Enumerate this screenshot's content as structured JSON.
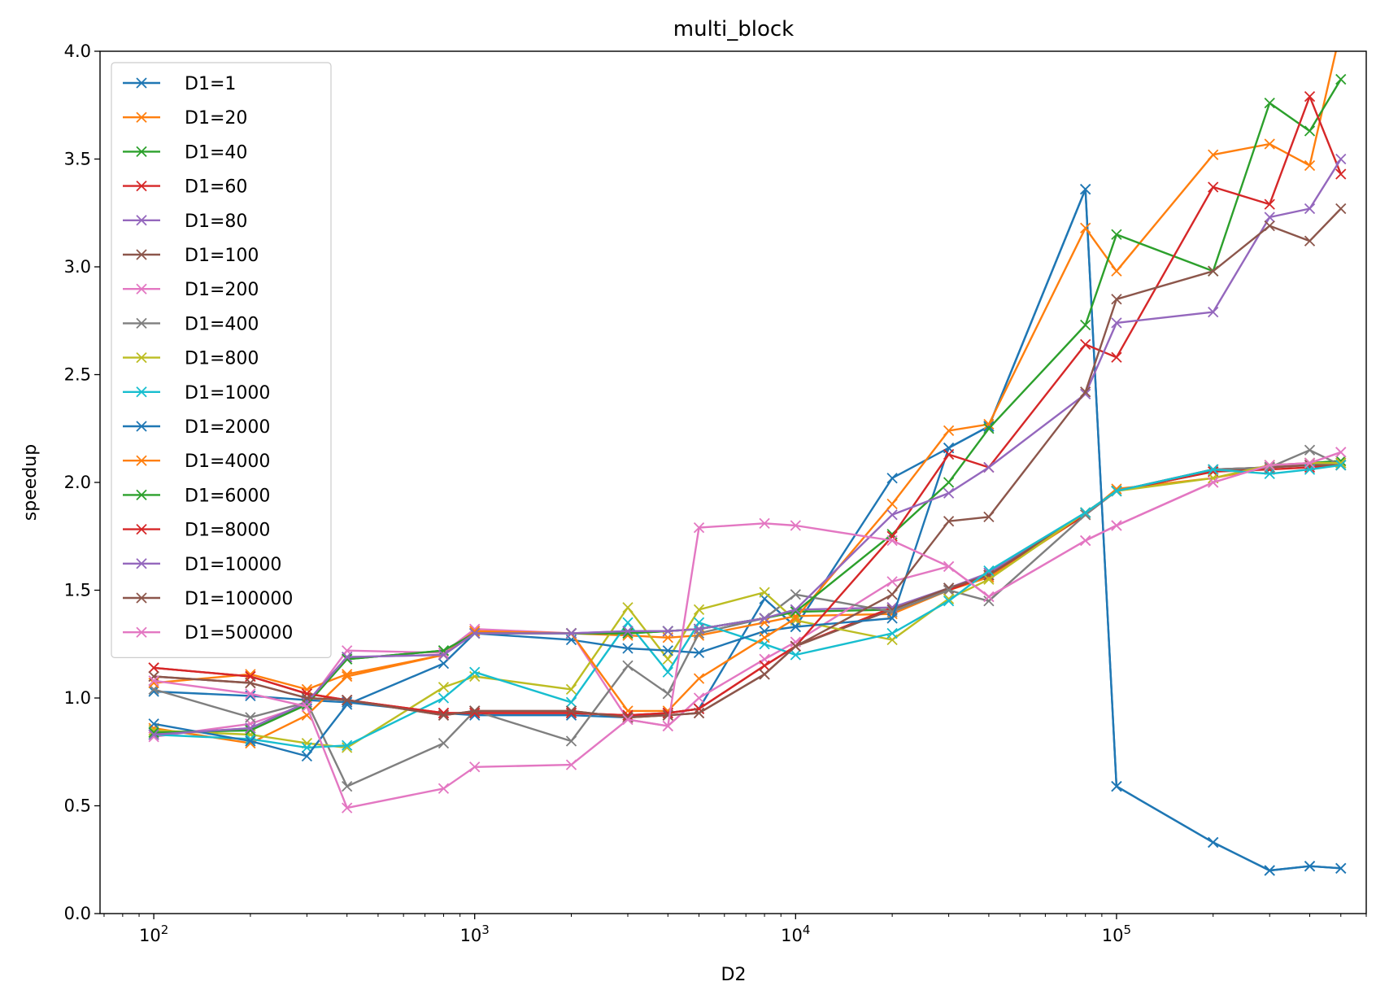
{
  "chart_data": {
    "type": "line",
    "title": "multi_block",
    "xlabel": "D2",
    "ylabel": "speedup",
    "xscale": "log",
    "xlim": [
      68,
      600000
    ],
    "ylim": [
      0,
      4.0
    ],
    "x_ticks": [
      {
        "value": 100,
        "base": "10",
        "exp": "2"
      },
      {
        "value": 1000,
        "base": "10",
        "exp": "3"
      },
      {
        "value": 10000,
        "base": "10",
        "exp": "4"
      },
      {
        "value": 100000,
        "base": "10",
        "exp": "5"
      }
    ],
    "y_ticks": [
      "0.0",
      "0.5",
      "1.0",
      "1.5",
      "2.0",
      "2.5",
      "3.0",
      "3.5",
      "4.0"
    ],
    "legend_position": "upper-left",
    "marker": "x",
    "grid": false,
    "x": [
      100,
      200,
      300,
      400,
      800,
      1000,
      2000,
      3000,
      4000,
      5000,
      8000,
      10000,
      20000,
      30000,
      40000,
      80000,
      100000,
      200000,
      300000,
      400000,
      500000
    ],
    "series": [
      {
        "name": "D1=1",
        "color": "#1f77b4",
        "values": [
          1.03,
          1.01,
          0.99,
          0.98,
          0.93,
          0.92,
          0.92,
          0.91,
          0.93,
          0.95,
          1.46,
          1.33,
          2.02,
          2.16,
          2.26,
          3.36,
          0.59,
          0.33,
          0.2,
          0.22,
          0.21
        ]
      },
      {
        "name": "D1=20",
        "color": "#ff7f0e",
        "values": [
          0.86,
          0.79,
          0.92,
          1.1,
          1.2,
          1.31,
          1.3,
          1.29,
          1.28,
          1.29,
          1.35,
          1.38,
          1.39,
          1.5,
          1.56,
          1.85,
          1.97,
          2.02,
          2.07,
          2.09,
          2.09
        ]
      },
      {
        "name": "D1=40",
        "color": "#2ca02c",
        "values": [
          0.84,
          0.85,
          0.97,
          1.18,
          1.22,
          1.3,
          1.3,
          1.3,
          1.31,
          1.32,
          1.37,
          1.4,
          1.41,
          1.51,
          1.57,
          1.86,
          1.96,
          2.05,
          2.07,
          2.09,
          2.1
        ]
      },
      {
        "name": "D1=60",
        "color": "#d62728",
        "values": [
          1.14,
          1.1,
          1.02,
          0.99,
          0.93,
          0.93,
          0.93,
          0.92,
          0.93,
          0.95,
          1.15,
          1.24,
          1.42,
          1.5,
          1.57,
          1.85,
          1.96,
          2.05,
          2.06,
          2.07,
          2.08
        ]
      },
      {
        "name": "D1=80",
        "color": "#9467bd",
        "values": [
          0.83,
          0.86,
          0.98,
          1.19,
          1.2,
          1.3,
          1.3,
          1.31,
          1.31,
          1.32,
          1.37,
          1.41,
          1.42,
          1.51,
          1.58,
          1.86,
          1.96,
          2.06,
          2.07,
          2.08,
          2.09
        ]
      },
      {
        "name": "D1=100",
        "color": "#8c564b",
        "values": [
          1.1,
          1.07,
          1.0,
          0.99,
          0.92,
          0.94,
          0.94,
          0.91,
          0.92,
          0.93,
          1.11,
          1.24,
          1.41,
          1.51,
          1.57,
          1.86,
          1.96,
          2.06,
          2.07,
          2.08,
          2.08
        ]
      },
      {
        "name": "D1=200",
        "color": "#e377c2",
        "values": [
          0.82,
          0.88,
          0.97,
          1.22,
          1.21,
          1.32,
          1.3,
          0.9,
          0.87,
          1.0,
          1.18,
          1.26,
          1.54,
          1.61,
          1.47,
          1.73,
          1.8,
          2.0,
          2.08,
          2.09,
          2.14
        ]
      },
      {
        "name": "D1=400",
        "color": "#7f7f7f",
        "values": [
          1.04,
          0.91,
          0.98,
          0.59,
          0.79,
          0.94,
          0.8,
          1.15,
          1.02,
          1.3,
          1.37,
          1.48,
          1.4,
          1.5,
          1.45,
          1.85,
          1.96,
          2.06,
          2.07,
          2.15,
          2.08
        ]
      },
      {
        "name": "D1=800",
        "color": "#bcbd22",
        "values": [
          0.85,
          0.83,
          0.79,
          0.77,
          1.05,
          1.1,
          1.04,
          1.42,
          1.18,
          1.41,
          1.49,
          1.36,
          1.27,
          1.46,
          1.55,
          1.86,
          1.96,
          2.02,
          2.08,
          2.09,
          2.09
        ]
      },
      {
        "name": "D1=1000",
        "color": "#17becf",
        "values": [
          0.83,
          0.81,
          0.77,
          0.78,
          1.0,
          1.12,
          0.98,
          1.35,
          1.12,
          1.35,
          1.25,
          1.2,
          1.3,
          1.45,
          1.59,
          1.86,
          1.96,
          2.06,
          2.04,
          2.06,
          2.08
        ]
      },
      {
        "name": "D1=2000",
        "color": "#1f77b4",
        "values": [
          0.88,
          0.8,
          0.73,
          0.97,
          1.16,
          1.3,
          1.27,
          1.23,
          1.22,
          1.21,
          1.31,
          1.33,
          1.37,
          2.16,
          2.26,
          3.36,
          0.59,
          0.33,
          0.2,
          0.22,
          0.21
        ]
      },
      {
        "name": "D1=4000",
        "color": "#ff7f0e",
        "values": [
          1.07,
          1.11,
          1.04,
          1.11,
          1.2,
          1.31,
          1.3,
          0.94,
          0.94,
          1.09,
          1.28,
          1.37,
          1.9,
          2.24,
          2.27,
          3.18,
          2.98,
          3.52,
          3.57,
          3.47,
          4.1
        ]
      },
      {
        "name": "D1=6000",
        "color": "#2ca02c",
        "values": [
          0.84,
          0.85,
          0.97,
          1.18,
          1.22,
          1.3,
          1.3,
          1.3,
          1.31,
          1.32,
          1.37,
          1.4,
          1.76,
          2.0,
          2.25,
          2.73,
          3.15,
          2.98,
          3.76,
          3.63,
          3.87
        ]
      },
      {
        "name": "D1=8000",
        "color": "#d62728",
        "values": [
          1.14,
          1.1,
          1.02,
          0.99,
          0.93,
          0.93,
          0.93,
          0.92,
          0.93,
          0.95,
          1.15,
          1.24,
          1.75,
          2.13,
          2.07,
          2.64,
          2.58,
          3.37,
          3.29,
          3.79,
          3.43
        ]
      },
      {
        "name": "D1=10000",
        "color": "#9467bd",
        "values": [
          0.83,
          0.86,
          0.98,
          1.19,
          1.2,
          1.3,
          1.3,
          1.31,
          1.31,
          1.32,
          1.37,
          1.41,
          1.85,
          1.95,
          2.07,
          2.41,
          2.74,
          2.79,
          3.23,
          3.27,
          3.5
        ]
      },
      {
        "name": "D1=100000",
        "color": "#8c564b",
        "values": [
          1.1,
          1.07,
          1.0,
          0.99,
          0.92,
          0.94,
          0.94,
          0.91,
          0.92,
          0.93,
          1.11,
          1.24,
          1.48,
          1.82,
          1.84,
          2.42,
          2.85,
          2.98,
          3.19,
          3.12,
          3.27
        ]
      },
      {
        "name": "D1=500000",
        "color": "#e377c2",
        "values": [
          1.08,
          1.02,
          0.96,
          0.49,
          0.58,
          0.68,
          0.69,
          0.9,
          0.87,
          1.79,
          1.81,
          1.8,
          1.73,
          1.61,
          1.47,
          1.73,
          1.8,
          2.0,
          2.08,
          2.09,
          2.14
        ]
      }
    ]
  }
}
